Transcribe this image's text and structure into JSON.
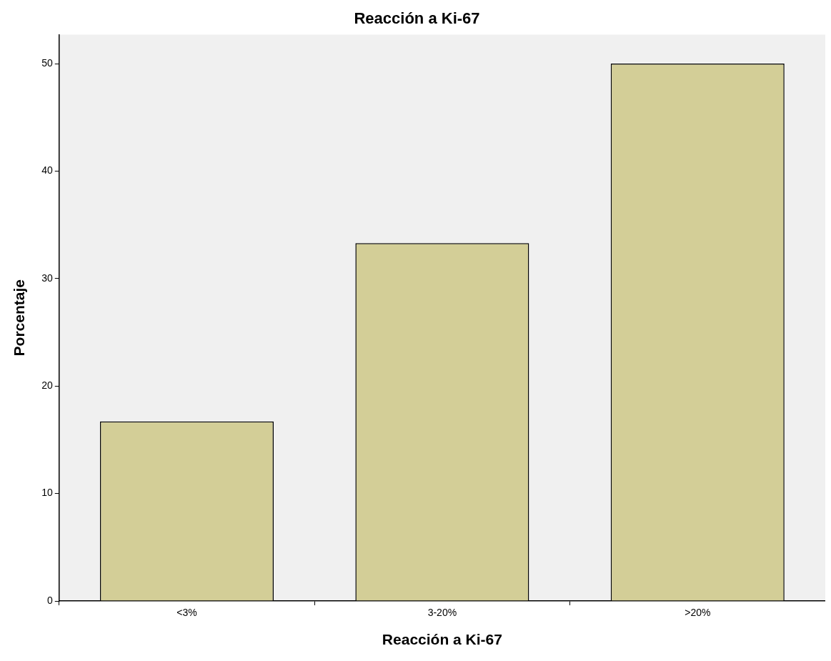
{
  "chart_data": {
    "type": "bar",
    "title": "Reacción a Ki-67",
    "xlabel": "Reacción a Ki-67",
    "ylabel": "Porcentaje",
    "categories": [
      "<3%",
      "3-20%",
      ">20%"
    ],
    "values": [
      16.7,
      33.3,
      50
    ],
    "color": "#d3ce97",
    "ylim": [
      0,
      52.7
    ],
    "yticks": [
      0,
      10,
      20,
      30,
      40,
      50
    ],
    "grid": false,
    "legend": false
  }
}
